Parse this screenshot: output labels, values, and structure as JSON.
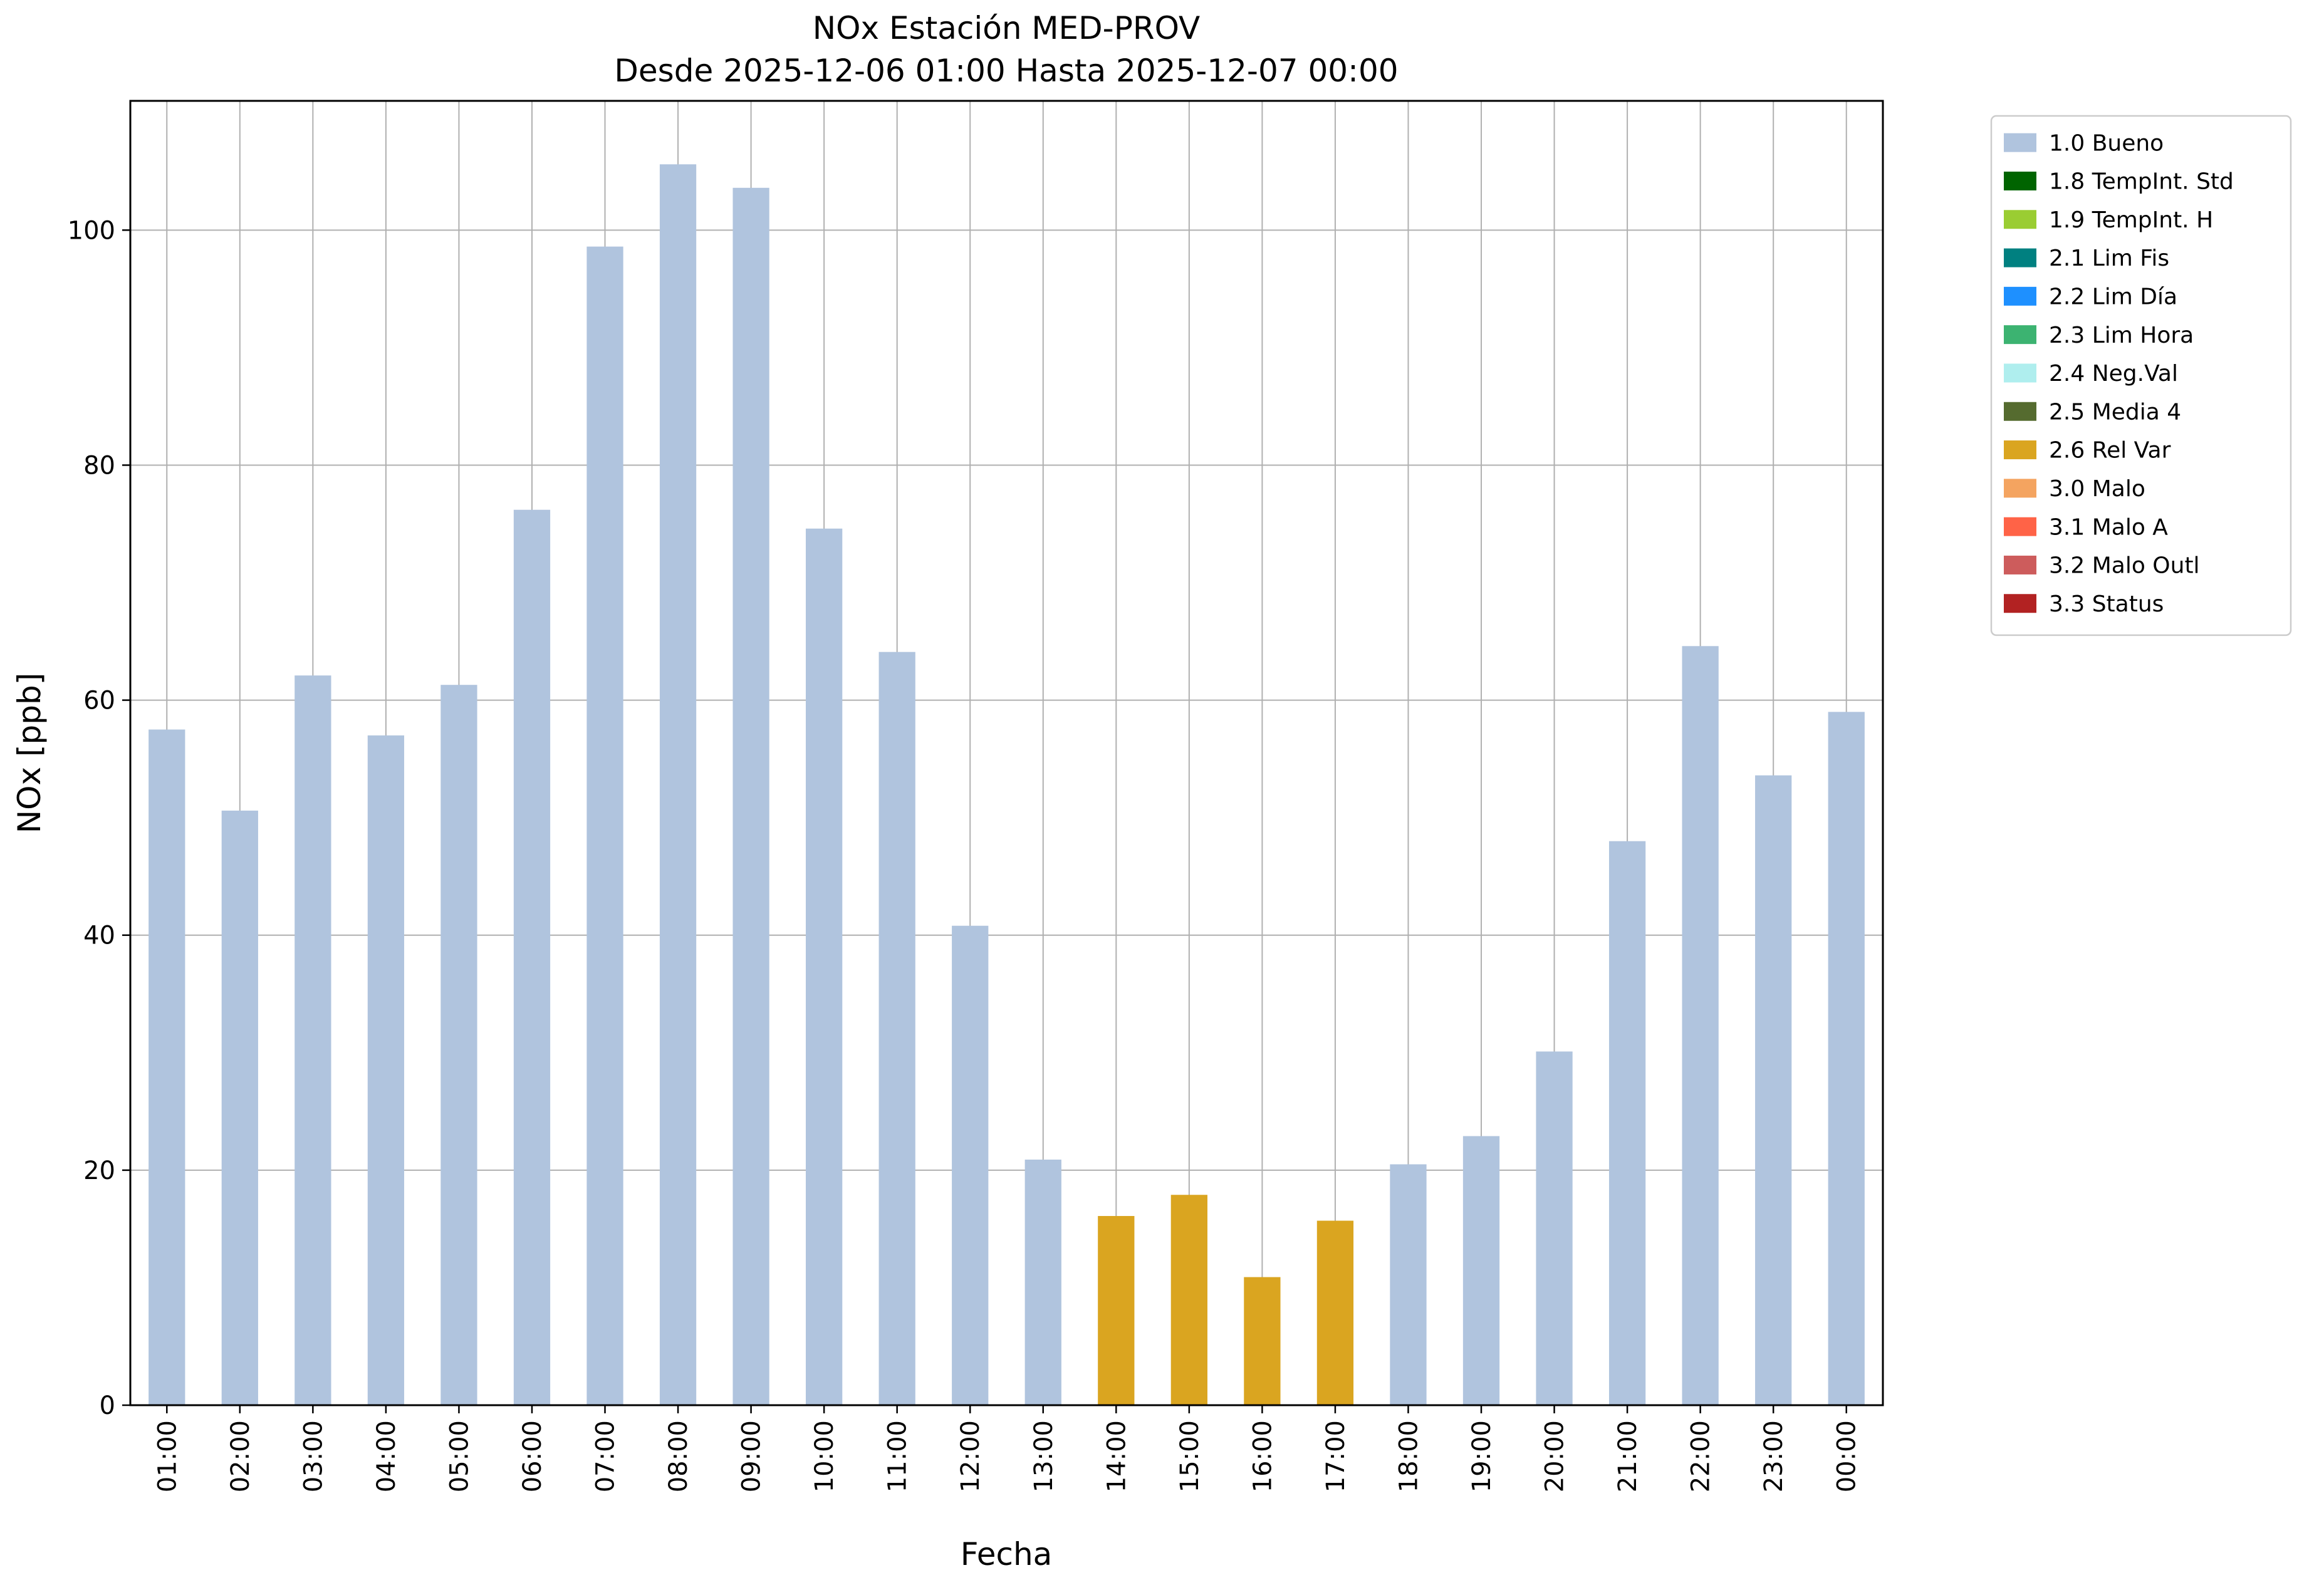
{
  "chart_data": {
    "type": "bar",
    "title": "NOx Estación MED-PROV",
    "subtitle": "Desde 2025-12-06 01:00 Hasta 2025-12-07 00:00",
    "xlabel": "Fecha",
    "ylabel": "NOx [ppb]",
    "ylim": [
      0,
      111
    ],
    "yticks": [
      0,
      20,
      40,
      60,
      80,
      100
    ],
    "grid": true,
    "grid_color": "#b0b0b0",
    "legend_position": "upper-right-outside",
    "categories": [
      "01:00",
      "02:00",
      "03:00",
      "04:00",
      "05:00",
      "06:00",
      "07:00",
      "08:00",
      "09:00",
      "10:00",
      "11:00",
      "12:00",
      "13:00",
      "14:00",
      "15:00",
      "16:00",
      "17:00",
      "18:00",
      "19:00",
      "20:00",
      "21:00",
      "22:00",
      "23:00",
      "00:00"
    ],
    "values": [
      57.5,
      50.6,
      62.1,
      57.0,
      61.3,
      76.2,
      98.6,
      105.6,
      103.6,
      74.6,
      64.1,
      40.8,
      20.9,
      16.1,
      17.9,
      10.9,
      15.7,
      20.5,
      22.9,
      30.1,
      48.0,
      64.6,
      53.6,
      59.0
    ],
    "statuses": [
      "1.0 Bueno",
      "1.0 Bueno",
      "1.0 Bueno",
      "1.0 Bueno",
      "1.0 Bueno",
      "1.0 Bueno",
      "1.0 Bueno",
      "1.0 Bueno",
      "1.0 Bueno",
      "1.0 Bueno",
      "1.0 Bueno",
      "1.0 Bueno",
      "1.0 Bueno",
      "2.6 Rel Var",
      "2.6 Rel Var",
      "2.6 Rel Var",
      "2.6 Rel Var",
      "1.0 Bueno",
      "1.0 Bueno",
      "1.0 Bueno",
      "1.0 Bueno",
      "1.0 Bueno",
      "1.0 Bueno",
      "1.0 Bueno"
    ],
    "status_colors": {
      "1.0 Bueno": "#b0c4de",
      "2.6 Rel Var": "#daa520"
    },
    "legend": [
      {
        "label": "1.0 Bueno",
        "color": "#b0c4de"
      },
      {
        "label": "1.8 TempInt. Std",
        "color": "#006400"
      },
      {
        "label": "1.9 TempInt. H",
        "color": "#9acd32"
      },
      {
        "label": "2.1 Lim Fis",
        "color": "#008080"
      },
      {
        "label": "2.2 Lim Día",
        "color": "#1e90ff"
      },
      {
        "label": "2.3 Lim Hora",
        "color": "#3cb371"
      },
      {
        "label": "2.4 Neg.Val",
        "color": "#afeeee"
      },
      {
        "label": "2.5 Media 4",
        "color": "#556b2f"
      },
      {
        "label": "2.6 Rel Var",
        "color": "#daa520"
      },
      {
        "label": "3.0 Malo",
        "color": "#f4a460"
      },
      {
        "label": "3.1 Malo A",
        "color": "#ff6347"
      },
      {
        "label": "3.2 Malo Outl",
        "color": "#cd5c5c"
      },
      {
        "label": "3.3 Status",
        "color": "#b22222"
      }
    ]
  }
}
